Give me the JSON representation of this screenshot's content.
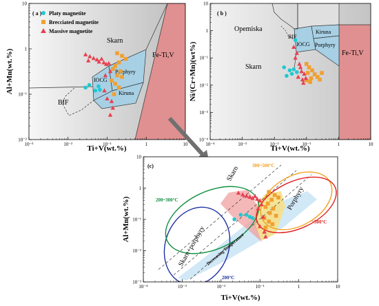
{
  "panels": {
    "a": {
      "label": "( a )",
      "xlabel": "Ti+V(wt.%)",
      "ylabel": "Al+Mn(wt.%)",
      "x_ticks": [
        "10⁻³",
        "10⁻²",
        "10⁻¹",
        "1",
        "10"
      ],
      "y_ticks": [
        "10⁻²",
        "10⁻¹",
        "1",
        "10"
      ],
      "legend": [
        "Platy magnetite",
        "Brecciated magnetite",
        "Massive magnetite"
      ],
      "regions": [
        "Skarn",
        "IOCG",
        "Porphyry",
        "Kiruna",
        "BIF",
        "Fe-Ti,V"
      ]
    },
    "b": {
      "label": "( b )",
      "xlabel": "Ti+V(wt.%)",
      "ylabel": "Ni/(Cr+Mn)(wt%)",
      "x_ticks": [
        "10⁻⁴",
        "10⁻³",
        "10⁻²",
        "10⁻¹",
        "1",
        "10"
      ],
      "y_ticks": [
        "10⁻⁴",
        "10⁻³",
        "10⁻²",
        "10⁻¹",
        "1",
        "10"
      ],
      "regions": [
        "Opemiska",
        "BIF",
        "IOCG",
        "Kiruna",
        "Porphyry",
        "Fe-Ti,V",
        "Skarn"
      ]
    },
    "c": {
      "label": "(c)",
      "xlabel": "Ti+V(wt.%)",
      "ylabel": "Al+Mn(wt.%)",
      "x_ticks": [
        "10⁻⁴",
        "10⁻³",
        "10⁻²",
        "10⁻¹",
        "1",
        "10"
      ],
      "y_ticks": [
        "10⁻³",
        "10⁻²",
        "10⁻¹",
        "1",
        "10"
      ],
      "labels": {
        "skarn": "Skarn",
        "porphyry": "Porphyry",
        "skarn_porphyry": "Skarn+porphyry",
        "decreasing": "Decreasing Temperature",
        "t200": "200°C",
        "t200_300": "200~300°C",
        "t300_500": "300~500°C",
        "t500": ">500°C"
      }
    }
  },
  "colors": {
    "platy": "#20c8d0",
    "brecciated": "#f0a030",
    "massive": "#e84050",
    "fe_ti_v": "#e09090",
    "field_blue": "#a8d0e4",
    "ell_200": "#2030a0",
    "ell_200_300": "#109040",
    "ell_300_500": "#f0a020",
    "ell_500": "#e02020"
  },
  "chart_data": [
    {
      "type": "scatter",
      "panel": "a",
      "xlabel": "Ti+V(wt.%)",
      "ylabel": "Al+Mn(wt.%)",
      "log_x": true,
      "log_y": true,
      "xlim": [
        0.001,
        10
      ],
      "ylim": [
        0.01,
        10
      ],
      "series": [
        {
          "name": "Platy magnetite",
          "marker": "circle",
          "points": [
            [
              0.028,
              0.14
            ],
            [
              0.035,
              0.16
            ],
            [
              0.05,
              0.12
            ],
            [
              0.06,
              0.15
            ],
            [
              0.065,
              0.125
            ]
          ]
        },
        {
          "name": "Brecciated magnetite",
          "marker": "square",
          "points": [
            [
              0.18,
              0.8
            ],
            [
              0.24,
              0.7
            ],
            [
              0.3,
              0.6
            ],
            [
              0.2,
              0.5
            ],
            [
              0.16,
              0.42
            ],
            [
              0.14,
              0.36
            ],
            [
              0.22,
              0.32
            ],
            [
              0.18,
              0.26
            ],
            [
              0.24,
              0.24
            ],
            [
              0.13,
              0.2
            ],
            [
              0.16,
              0.17
            ],
            [
              0.2,
              0.14
            ],
            [
              0.15,
              0.1
            ]
          ]
        },
        {
          "name": "Massive magnetite",
          "marker": "triangle",
          "points": [
            [
              0.028,
              0.75
            ],
            [
              0.036,
              0.68
            ],
            [
              0.045,
              0.62
            ],
            [
              0.055,
              0.58
            ],
            [
              0.033,
              0.55
            ],
            [
              0.062,
              0.52
            ],
            [
              0.072,
              0.6
            ],
            [
              0.082,
              0.5
            ],
            [
              0.095,
              0.46
            ],
            [
              0.11,
              0.48
            ],
            [
              0.12,
              0.32
            ],
            [
              0.09,
              0.26
            ],
            [
              0.085,
              0.12
            ],
            [
              0.1,
              0.08
            ],
            [
              0.13,
              0.07
            ],
            [
              0.14,
              0.05
            ],
            [
              0.12,
              0.035
            ]
          ]
        }
      ]
    },
    {
      "type": "scatter",
      "panel": "b",
      "xlabel": "Ti+V(wt.%)",
      "ylabel": "Ni/(Cr+Mn)(wt%)",
      "log_x": true,
      "log_y": true,
      "xlim": [
        0.0001,
        10
      ],
      "ylim": [
        0.0001,
        10
      ],
      "series": [
        {
          "name": "Platy magnetite",
          "marker": "circle",
          "points": [
            [
              0.045,
              0.45
            ],
            [
              0.02,
              0.045
            ],
            [
              0.03,
              0.035
            ],
            [
              0.035,
              0.026
            ],
            [
              0.04,
              0.038
            ],
            [
              0.05,
              0.03
            ],
            [
              0.024,
              0.022
            ]
          ]
        },
        {
          "name": "Brecciated magnetite",
          "marker": "square",
          "points": [
            [
              0.1,
              0.06
            ],
            [
              0.12,
              0.045
            ],
            [
              0.15,
              0.035
            ],
            [
              0.18,
              0.025
            ],
            [
              0.11,
              0.028
            ],
            [
              0.22,
              0.02
            ],
            [
              0.26,
              0.016
            ],
            [
              0.14,
              0.018
            ],
            [
              0.1,
              0.015
            ],
            [
              0.3,
              0.028
            ],
            [
              0.13,
              0.013
            ]
          ]
        },
        {
          "name": "Massive magnetite",
          "marker": "triangle",
          "points": [
            [
              0.04,
              0.25
            ],
            [
              0.05,
              0.15
            ],
            [
              0.045,
              0.1
            ],
            [
              0.06,
              0.06
            ],
            [
              0.065,
              0.045
            ],
            [
              0.07,
              0.032
            ],
            [
              0.085,
              0.026
            ],
            [
              0.055,
              0.02
            ],
            [
              0.075,
              0.016
            ],
            [
              0.095,
              0.018
            ],
            [
              0.08,
              0.012
            ]
          ]
        }
      ]
    },
    {
      "type": "scatter",
      "panel": "c",
      "xlabel": "Ti+V(wt.%)",
      "ylabel": "Al+Mn(wt.%)",
      "log_x": true,
      "log_y": true,
      "xlim": [
        0.0001,
        10
      ],
      "ylim": [
        0.001,
        10
      ],
      "series": [
        {
          "name": "Platy magnetite",
          "marker": "circle",
          "points": [
            [
              0.022,
              0.1
            ],
            [
              0.032,
              0.14
            ],
            [
              0.045,
              0.14
            ],
            [
              0.055,
              0.12
            ],
            [
              0.065,
              0.11
            ]
          ]
        },
        {
          "name": "Brecciated magnetite",
          "marker": "square",
          "points": [
            [
              0.17,
              0.75
            ],
            [
              0.24,
              0.6
            ],
            [
              0.3,
              0.5
            ],
            [
              0.2,
              0.42
            ],
            [
              0.16,
              0.32
            ],
            [
              0.14,
              0.25
            ],
            [
              0.22,
              0.22
            ],
            [
              0.18,
              0.16
            ],
            [
              0.26,
              0.13
            ],
            [
              0.13,
              0.11
            ],
            [
              0.17,
              0.085
            ],
            [
              0.21,
              0.07
            ],
            [
              0.14,
              0.055
            ]
          ]
        },
        {
          "name": "Massive magnetite",
          "marker": "triangle",
          "points": [
            [
              0.028,
              0.7
            ],
            [
              0.036,
              0.62
            ],
            [
              0.045,
              0.56
            ],
            [
              0.055,
              0.52
            ],
            [
              0.065,
              0.48
            ],
            [
              0.075,
              0.55
            ],
            [
              0.085,
              0.45
            ],
            [
              0.1,
              0.4
            ],
            [
              0.11,
              0.3
            ],
            [
              0.09,
              0.22
            ],
            [
              0.12,
              0.12
            ],
            [
              0.1,
              0.06
            ],
            [
              0.13,
              0.04
            ],
            [
              0.14,
              0.028
            ]
          ]
        }
      ]
    }
  ]
}
